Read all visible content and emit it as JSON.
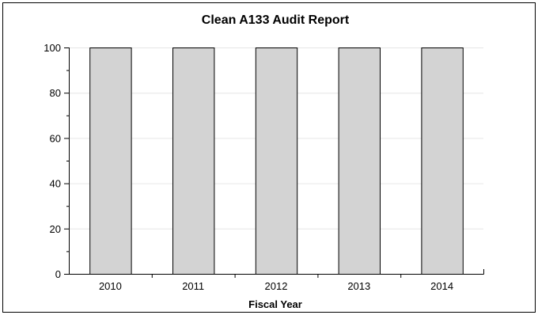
{
  "chart_data": {
    "type": "bar",
    "title": "Clean A133 Audit Report",
    "xlabel": "Fiscal Year",
    "ylabel": "",
    "categories": [
      "2010",
      "2011",
      "2012",
      "2013",
      "2014"
    ],
    "values": [
      100,
      100,
      100,
      100,
      100
    ],
    "ylim": [
      0,
      100
    ],
    "yticks": [
      "0",
      "20",
      "40",
      "60",
      "80",
      "100"
    ],
    "grid": true,
    "legend": "none",
    "colors": {
      "bar_fill": "#d3d3d3",
      "bar_stroke": "#000000",
      "grid": "#e6e6e6",
      "axis": "#000000",
      "frame": "#000000"
    }
  }
}
